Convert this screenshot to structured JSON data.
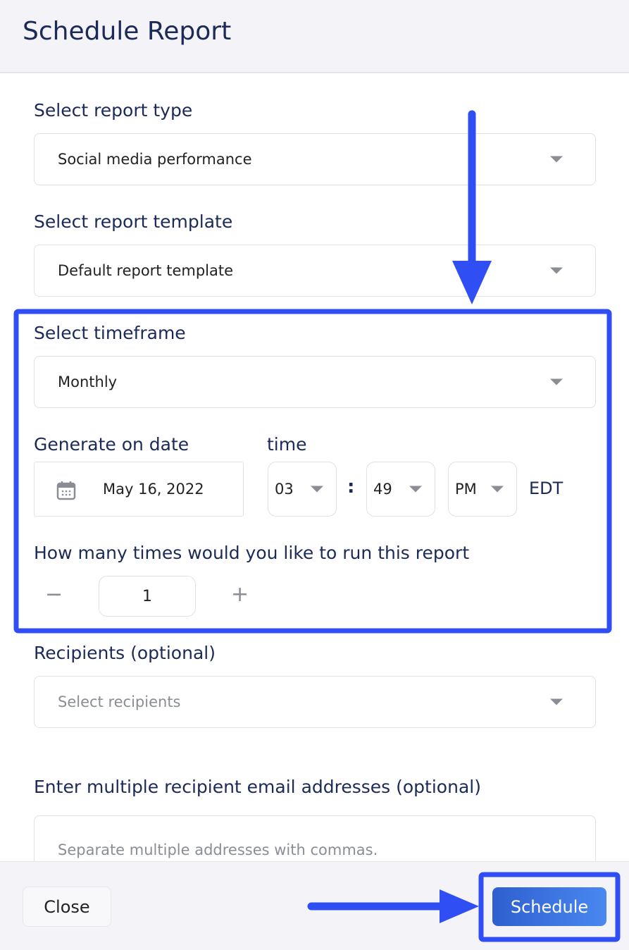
{
  "header": {
    "title": "Schedule Report"
  },
  "form": {
    "report_type": {
      "label": "Select report type",
      "value": "Social media performance"
    },
    "report_template": {
      "label": "Select report template",
      "value": "Default report template"
    },
    "timeframe": {
      "label": "Select timeframe",
      "value": "Monthly"
    },
    "date": {
      "label": "Generate on date",
      "value": "May 16, 2022",
      "icon": "calendar-icon"
    },
    "time": {
      "label": "time",
      "hour": "03",
      "separator": ":",
      "minute": "49",
      "ampm": "PM",
      "timezone": "EDT"
    },
    "runs": {
      "label": "How many times would you like to run this report",
      "minus": "−",
      "value": "1",
      "plus": "+"
    },
    "recipients": {
      "label": "Recipients (optional)",
      "placeholder": "Select recipients"
    },
    "emails": {
      "label": "Enter multiple recipient email addresses (optional)",
      "placeholder": "Separate multiple addresses with commas."
    }
  },
  "footer": {
    "close_label": "Close",
    "schedule_label": "Schedule"
  },
  "colors": {
    "annotation": "#2f4ff5",
    "primary": "#3a6fe0",
    "text": "#1b2a57"
  }
}
